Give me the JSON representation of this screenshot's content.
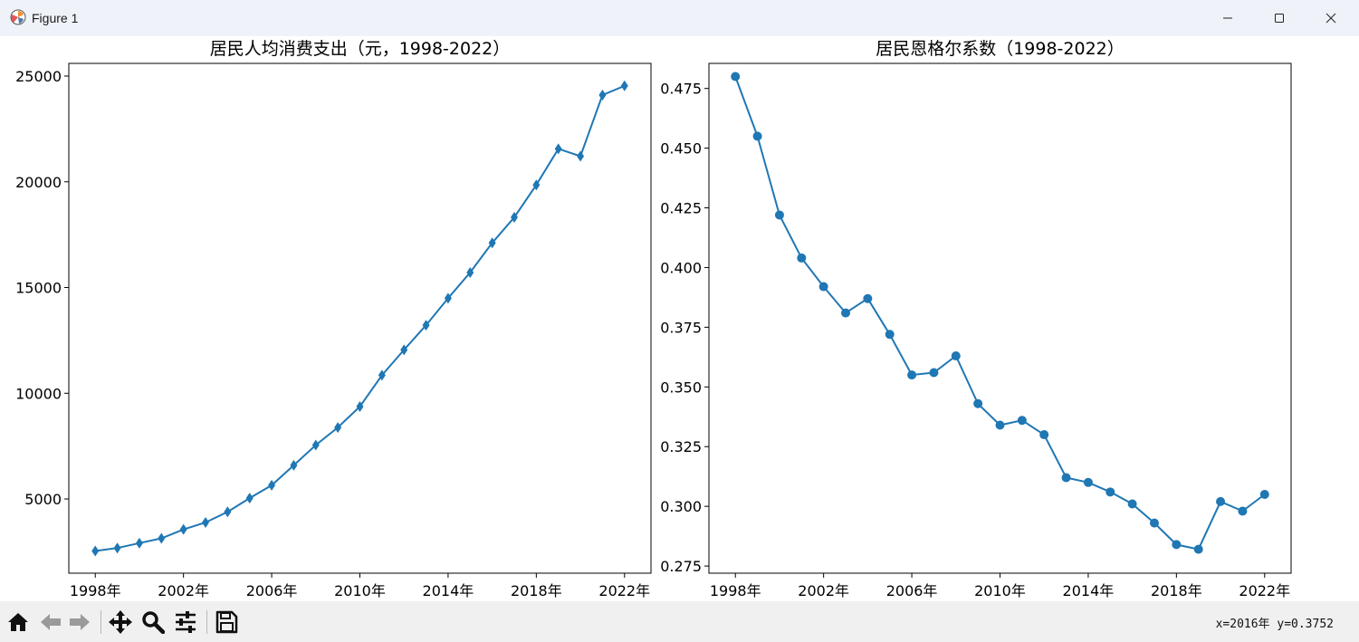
{
  "window": {
    "title": "Figure 1"
  },
  "toolbar": {
    "coords": "x=2016年 y=0.3752",
    "buttons": [
      "home-icon",
      "back-icon",
      "forward-icon",
      "pan-icon",
      "zoom-icon",
      "configure-subplots-icon",
      "save-icon"
    ]
  },
  "colors": {
    "series": "#1f77b4",
    "titlebar": "#eff3f9",
    "toolbar": "#f0f0f0"
  },
  "chart_data": [
    {
      "type": "line",
      "title": "居民人均消费支出（元，1998-2022）",
      "marker": "diamond",
      "x": [
        1998,
        1999,
        2000,
        2001,
        2002,
        2003,
        2004,
        2005,
        2006,
        2007,
        2008,
        2009,
        2010,
        2011,
        2012,
        2013,
        2014,
        2015,
        2016,
        2017,
        2018,
        2019,
        2020,
        2021,
        2022
      ],
      "values": [
        2540,
        2680,
        2910,
        3140,
        3560,
        3890,
        4390,
        5040,
        5650,
        6590,
        7550,
        8380,
        9370,
        10850,
        12050,
        13220,
        14490,
        15710,
        17110,
        18320,
        19850,
        21560,
        21210,
        24100,
        24540
      ],
      "xticks": [
        "1998年",
        "2002年",
        "2006年",
        "2010年",
        "2014年",
        "2018年",
        "2022年"
      ],
      "yticks": [
        "5000",
        "10000",
        "15000",
        "20000",
        "25000"
      ],
      "xlim": [
        1996.8,
        2023.2
      ],
      "ylim": [
        1490,
        25600
      ],
      "grid": false
    },
    {
      "type": "line",
      "title": "居民恩格尔系数（1998-2022）",
      "marker": "circle",
      "x": [
        1998,
        1999,
        2000,
        2001,
        2002,
        2003,
        2004,
        2005,
        2006,
        2007,
        2008,
        2009,
        2010,
        2011,
        2012,
        2013,
        2014,
        2015,
        2016,
        2017,
        2018,
        2019,
        2020,
        2021,
        2022
      ],
      "values": [
        0.48,
        0.455,
        0.422,
        0.404,
        0.392,
        0.381,
        0.387,
        0.372,
        0.355,
        0.356,
        0.363,
        0.343,
        0.334,
        0.336,
        0.33,
        0.312,
        0.31,
        0.306,
        0.301,
        0.293,
        0.284,
        0.282,
        0.302,
        0.298,
        0.305
      ],
      "xticks": [
        "1998年",
        "2002年",
        "2006年",
        "2010年",
        "2014年",
        "2018年",
        "2022年"
      ],
      "yticks": [
        "0.275",
        "0.300",
        "0.325",
        "0.350",
        "0.375",
        "0.400",
        "0.425",
        "0.450",
        "0.475"
      ],
      "xlim": [
        1996.8,
        2023.2
      ],
      "ylim": [
        0.272,
        0.4855
      ],
      "grid": false
    }
  ]
}
